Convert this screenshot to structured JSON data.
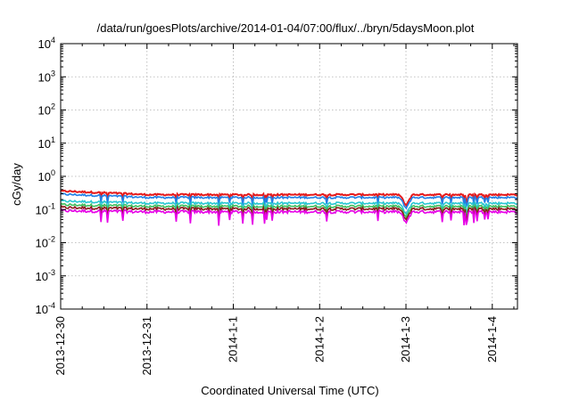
{
  "chart_data": {
    "type": "line",
    "title": "/data/run/goesPlots/archive/2014-01-04/07:00/flux/../bryn/5daysMoon.plot",
    "xlabel": "Coordinated Universal Time (UTC)",
    "ylabel": "cGy/day",
    "y_scale": "log",
    "ylim": [
      0.0001,
      10000
    ],
    "y_ticks": [
      {
        "value": 0.0001,
        "base": "10",
        "exp": "-4"
      },
      {
        "value": 0.001,
        "base": "10",
        "exp": "-3"
      },
      {
        "value": 0.01,
        "base": "10",
        "exp": "-2"
      },
      {
        "value": 0.1,
        "base": "10",
        "exp": "-1"
      },
      {
        "value": 1,
        "base": "10",
        "exp": "0"
      },
      {
        "value": 10,
        "base": "10",
        "exp": "1"
      },
      {
        "value": 100,
        "base": "10",
        "exp": "2"
      },
      {
        "value": 1000,
        "base": "10",
        "exp": "3"
      },
      {
        "value": 10000,
        "base": "10",
        "exp": "4"
      }
    ],
    "xlim": [
      "2013-12-30 00:00",
      "2014-01-04 07:00"
    ],
    "x_ticks": [
      "2013-12-30",
      "2013-12-31",
      "2014-1-1",
      "2014-1-2",
      "2014-1-3",
      "2014-1-4"
    ],
    "grid": true,
    "colors": {
      "red": "#e41a1c",
      "blue": "#1f7fe6",
      "cyan": "#27c7d1",
      "green": "#3fbf5f",
      "darkred": "#8b1a1a",
      "magenta": "#e600e6",
      "grid": "#b0b0b0"
    },
    "series": [
      {
        "color": "#e41a1c",
        "base_day": 0.28,
        "day0": 0.36,
        "day2_dip": 0.24
      },
      {
        "color": "#1f7fe6",
        "base_day": 0.23,
        "day0": 0.29,
        "day2_dip": 0.2
      },
      {
        "color": "#27c7d1",
        "base_day": 0.155,
        "day0": 0.18,
        "day2_dip": 0.13
      },
      {
        "color": "#3fbf5f",
        "base_day": 0.125,
        "day0": 0.14,
        "day2_dip": 0.105
      },
      {
        "color": "#8b1a1a",
        "base_day": 0.105,
        "day0": 0.115,
        "day2_dip": 0.09
      },
      {
        "color": "#e600e6",
        "base_day": 0.085,
        "day0": 0.092,
        "day2_dip": 0.075
      }
    ],
    "events": [
      {
        "x_day": 4.0,
        "depth_factor": 0.45
      }
    ]
  }
}
